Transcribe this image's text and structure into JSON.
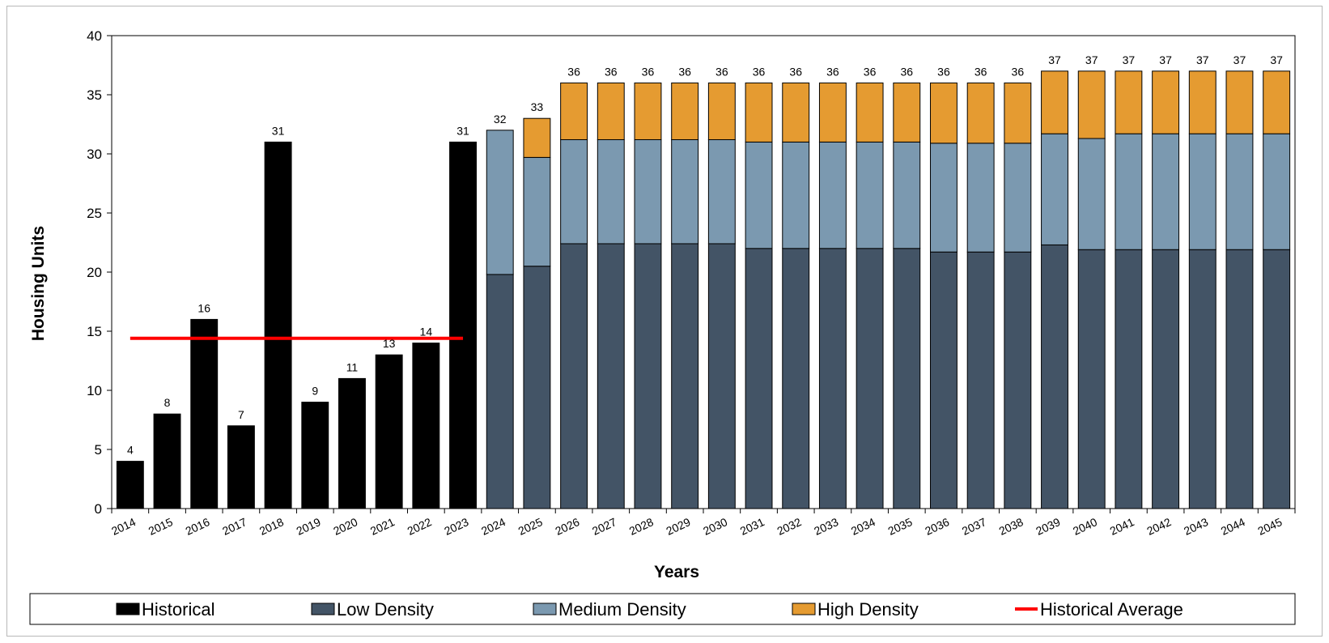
{
  "chart_data": {
    "type": "bar",
    "title": "",
    "xlabel": "Years",
    "ylabel": "Housing Units",
    "ylim": [
      0,
      40
    ],
    "yticks": [
      0,
      5,
      10,
      15,
      20,
      25,
      30,
      35,
      40
    ],
    "grid": false,
    "legend_position": "bottom",
    "categories": [
      "2014",
      "2015",
      "2016",
      "2017",
      "2018",
      "2019",
      "2020",
      "2021",
      "2022",
      "2023",
      "2024",
      "2025",
      "2026",
      "2027",
      "2028",
      "2029",
      "2030",
      "2031",
      "2032",
      "2033",
      "2034",
      "2035",
      "2036",
      "2037",
      "2038",
      "2039",
      "2040",
      "2041",
      "2042",
      "2043",
      "2044",
      "2045"
    ],
    "series": [
      {
        "name": "Historical",
        "color": "#000000",
        "kind": "bar",
        "values": [
          4,
          8,
          16,
          7,
          31,
          9,
          11,
          13,
          14,
          31,
          null,
          null,
          null,
          null,
          null,
          null,
          null,
          null,
          null,
          null,
          null,
          null,
          null,
          null,
          null,
          null,
          null,
          null,
          null,
          null,
          null,
          null
        ]
      },
      {
        "name": "Low Density",
        "color": "#435466",
        "kind": "stacked-bar",
        "values": [
          null,
          null,
          null,
          null,
          null,
          null,
          null,
          null,
          null,
          null,
          19.8,
          20.5,
          22.4,
          22.4,
          22.4,
          22.4,
          22.4,
          22.0,
          22.0,
          22.0,
          22.0,
          22.0,
          21.7,
          21.7,
          21.7,
          22.3,
          21.9,
          21.9,
          21.9,
          21.9,
          21.9,
          21.9
        ]
      },
      {
        "name": "Medium Density",
        "color": "#7b99b0",
        "kind": "stacked-bar",
        "values": [
          null,
          null,
          null,
          null,
          null,
          null,
          null,
          null,
          null,
          null,
          12.2,
          9.2,
          8.8,
          8.8,
          8.8,
          8.8,
          8.8,
          9.0,
          9.0,
          9.0,
          9.0,
          9.0,
          9.2,
          9.2,
          9.2,
          9.4,
          9.4,
          9.8,
          9.8,
          9.8,
          9.8,
          9.8
        ]
      },
      {
        "name": "High Density",
        "color": "#e59b31",
        "kind": "stacked-bar",
        "values": [
          null,
          null,
          null,
          null,
          null,
          null,
          null,
          null,
          null,
          null,
          0,
          3.3,
          4.8,
          4.8,
          4.8,
          4.8,
          4.8,
          5.0,
          5.0,
          5.0,
          5.0,
          5.0,
          5.1,
          5.1,
          5.1,
          5.3,
          5.7,
          5.3,
          5.3,
          5.3,
          5.3,
          5.3
        ]
      },
      {
        "name": "Historical Average",
        "color": "#ff0000",
        "kind": "line",
        "value": 14.4,
        "x_range": [
          "2014",
          "2023"
        ]
      }
    ],
    "totals": [
      4,
      8,
      16,
      7,
      31,
      9,
      11,
      13,
      14,
      31,
      32,
      33,
      36,
      36,
      36,
      36,
      36,
      36,
      36,
      36,
      36,
      36,
      36,
      36,
      36,
      37,
      37,
      37,
      37,
      37,
      37,
      37
    ]
  }
}
